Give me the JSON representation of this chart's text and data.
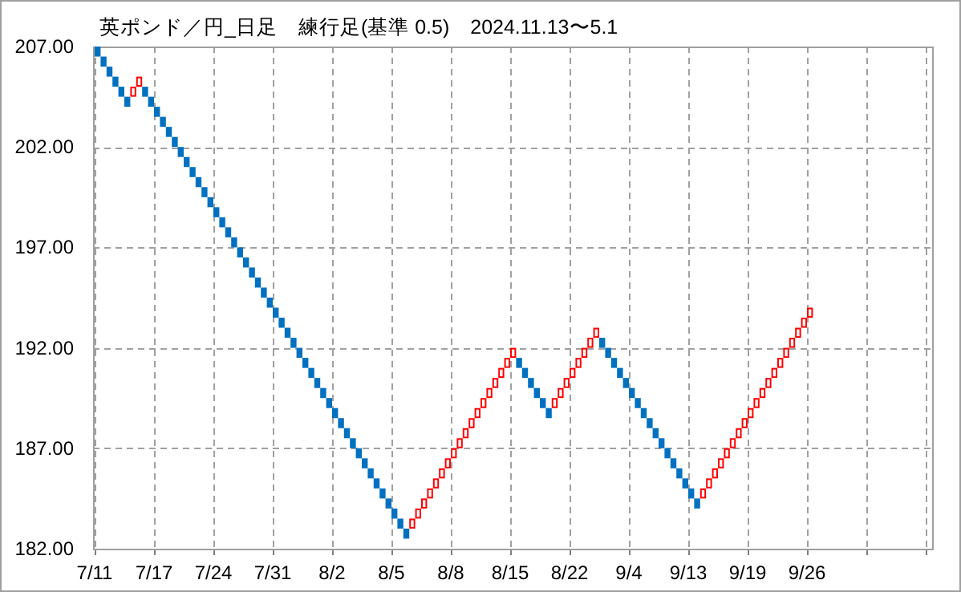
{
  "chart_data": {
    "type": "bar",
    "title": "英ポンド／円_日足　練行足(基準 0.5)　2024.11.13〜5.1",
    "categories": [
      "7/11",
      null,
      null,
      null,
      null,
      null,
      null,
      null,
      null,
      null,
      "7/17",
      null,
      null,
      null,
      null,
      null,
      null,
      null,
      null,
      null,
      "7/24",
      null,
      null,
      null,
      null,
      null,
      null,
      null,
      null,
      null,
      "7/31",
      null,
      null,
      null,
      null,
      null,
      null,
      null,
      null,
      null,
      "8/2",
      null,
      null,
      null,
      null,
      null,
      null,
      null,
      null,
      null,
      "8/5",
      null,
      null,
      null,
      null,
      null,
      null,
      null,
      null,
      null,
      "8/8",
      null,
      null,
      null,
      null,
      null,
      null,
      null,
      null,
      null,
      "8/15",
      null,
      null,
      null,
      null,
      null,
      null,
      null,
      null,
      null,
      "8/22",
      null,
      null,
      null,
      null,
      null,
      null,
      null,
      null,
      null,
      "9/4",
      null,
      null,
      null,
      null,
      null,
      null,
      null,
      null,
      null,
      "9/13",
      null,
      null,
      null,
      null,
      null,
      null,
      null,
      null,
      null,
      "9/19",
      null,
      null,
      null,
      null,
      null,
      null,
      null,
      null,
      null,
      "9/26",
      null,
      null,
      null,
      null,
      null,
      null,
      null,
      null,
      null,
      null,
      null,
      null,
      null,
      null,
      null,
      null,
      null,
      null,
      null,
      null
    ],
    "base": [
      207,
      206.5,
      206,
      205.5,
      205,
      204.5,
      204.5,
      205,
      205,
      204.5,
      204,
      203.5,
      203,
      202.5,
      202,
      201.5,
      201,
      200.5,
      200,
      199.5,
      199,
      198.5,
      198,
      197.5,
      197,
      196.5,
      196,
      195.5,
      195,
      194.5,
      194,
      193.5,
      193,
      192.5,
      192,
      191.5,
      191,
      190.5,
      190,
      189.5,
      189,
      188.5,
      188,
      187.5,
      187,
      186.5,
      186,
      185.5,
      185,
      184.5,
      184,
      183.5,
      183,
      183,
      183.5,
      184,
      184.5,
      185,
      185.5,
      186,
      186.5,
      187,
      187.5,
      188,
      188.5,
      189,
      189.5,
      190,
      190.5,
      191,
      191.5,
      191.5,
      191,
      190.5,
      190,
      189.5,
      189,
      189,
      189.5,
      190,
      190.5,
      191,
      191.5,
      192,
      192.5,
      192.5,
      192,
      191.5,
      191,
      190.5,
      190,
      189.5,
      189,
      188.5,
      188,
      187.5,
      187,
      186.5,
      186,
      185.5,
      185,
      184.5,
      184.5,
      185,
      185.5,
      186,
      186.5,
      187,
      187.5,
      188,
      188.5,
      189,
      189.5,
      190,
      190.5,
      191,
      191.5,
      192,
      192.5,
      193,
      193.5,
      null,
      null,
      null,
      null,
      null,
      null,
      null,
      null,
      null,
      null,
      null,
      null,
      null,
      null,
      null,
      null,
      null,
      null,
      null,
      null
    ],
    "values": [
      -0.5,
      -0.5,
      -0.5,
      -0.5,
      -0.5,
      -0.5,
      0.5,
      0.5,
      -0.5,
      -0.5,
      -0.5,
      -0.5,
      -0.5,
      -0.5,
      -0.5,
      -0.5,
      -0.5,
      -0.5,
      -0.5,
      -0.5,
      -0.5,
      -0.5,
      -0.5,
      -0.5,
      -0.5,
      -0.5,
      -0.5,
      -0.5,
      -0.5,
      -0.5,
      -0.5,
      -0.5,
      -0.5,
      -0.5,
      -0.5,
      -0.5,
      -0.5,
      -0.5,
      -0.5,
      -0.5,
      -0.5,
      -0.5,
      -0.5,
      -0.5,
      -0.5,
      -0.5,
      -0.5,
      -0.5,
      -0.5,
      -0.5,
      -0.5,
      -0.5,
      -0.5,
      0.5,
      0.5,
      0.5,
      0.5,
      0.5,
      0.5,
      0.5,
      0.5,
      0.5,
      0.5,
      0.5,
      0.5,
      0.5,
      0.5,
      0.5,
      0.5,
      0.5,
      0.5,
      -0.5,
      -0.5,
      -0.5,
      -0.5,
      -0.5,
      -0.5,
      0.5,
      0.5,
      0.5,
      0.5,
      0.5,
      0.5,
      0.5,
      0.5,
      -0.5,
      -0.5,
      -0.5,
      -0.5,
      -0.5,
      -0.5,
      -0.5,
      -0.5,
      -0.5,
      -0.5,
      -0.5,
      -0.5,
      -0.5,
      -0.5,
      -0.5,
      -0.5,
      -0.5,
      0.5,
      0.5,
      0.5,
      0.5,
      0.5,
      0.5,
      0.5,
      0.5,
      0.5,
      0.5,
      0.5,
      0.5,
      0.5,
      0.5,
      0.5,
      0.5,
      0.5,
      0.5,
      0.5,
      null,
      null,
      null,
      null,
      null,
      null,
      null,
      null,
      null,
      null,
      null,
      null,
      null,
      null,
      null,
      null,
      null,
      null,
      null,
      null
    ],
    "colors": [
      "#0070c0",
      "#0070c0",
      "#0070c0",
      "#0070c0",
      "#0070c0",
      "#0070c0",
      "#ff0000",
      "#ff0000",
      "#0070c0",
      "#0070c0",
      "#0070c0",
      "#0070c0",
      "#0070c0",
      "#0070c0",
      "#0070c0",
      "#0070c0",
      "#0070c0",
      "#0070c0",
      "#0070c0",
      "#0070c0",
      "#0070c0",
      "#0070c0",
      "#0070c0",
      "#0070c0",
      "#0070c0",
      "#0070c0",
      "#0070c0",
      "#0070c0",
      "#0070c0",
      "#0070c0",
      "#0070c0",
      "#0070c0",
      "#0070c0",
      "#0070c0",
      "#0070c0",
      "#0070c0",
      "#0070c0",
      "#0070c0",
      "#0070c0",
      "#0070c0",
      "#0070c0",
      "#0070c0",
      "#0070c0",
      "#0070c0",
      "#0070c0",
      "#0070c0",
      "#0070c0",
      "#0070c0",
      "#0070c0",
      "#0070c0",
      "#0070c0",
      "#0070c0",
      "#0070c0",
      "#ff0000",
      "#ff0000",
      "#ff0000",
      "#ff0000",
      "#ff0000",
      "#ff0000",
      "#ff0000",
      "#ff0000",
      "#ff0000",
      "#ff0000",
      "#ff0000",
      "#ff0000",
      "#ff0000",
      "#ff0000",
      "#ff0000",
      "#ff0000",
      "#ff0000",
      "#ff0000",
      "#0070c0",
      "#0070c0",
      "#0070c0",
      "#0070c0",
      "#0070c0",
      "#0070c0",
      "#ff0000",
      "#ff0000",
      "#ff0000",
      "#ff0000",
      "#ff0000",
      "#ff0000",
      "#ff0000",
      "#ff0000",
      "#0070c0",
      "#0070c0",
      "#0070c0",
      "#0070c0",
      "#0070c0",
      "#0070c0",
      "#0070c0",
      "#0070c0",
      "#0070c0",
      "#0070c0",
      "#0070c0",
      "#0070c0",
      "#0070c0",
      "#0070c0",
      "#0070c0",
      "#0070c0",
      "#0070c0",
      "#ff0000",
      "#ff0000",
      "#ff0000",
      "#ff0000",
      "#ff0000",
      "#ff0000",
      "#ff0000",
      "#ff0000",
      "#ff0000",
      "#ff0000",
      "#ff0000",
      "#ff0000",
      "#ff0000",
      "#ff0000",
      "#ff0000",
      "#ff0000",
      "#ff0000",
      "#ff0000",
      "#ff0000",
      null,
      null,
      null,
      null,
      null,
      null,
      null,
      null,
      null,
      null,
      null,
      null,
      null,
      null,
      null,
      null,
      null,
      null,
      null,
      null
    ],
    "ylim": [
      182,
      207
    ],
    "yticks": [
      {
        "value": 182,
        "label": "182.00"
      },
      {
        "value": 187,
        "label": "187.00"
      },
      {
        "value": 192,
        "label": "192.00"
      },
      {
        "value": 197,
        "label": "197.00"
      },
      {
        "value": 202,
        "label": "202.00"
      },
      {
        "value": 207,
        "label": "207.00"
      }
    ],
    "grid": true
  }
}
